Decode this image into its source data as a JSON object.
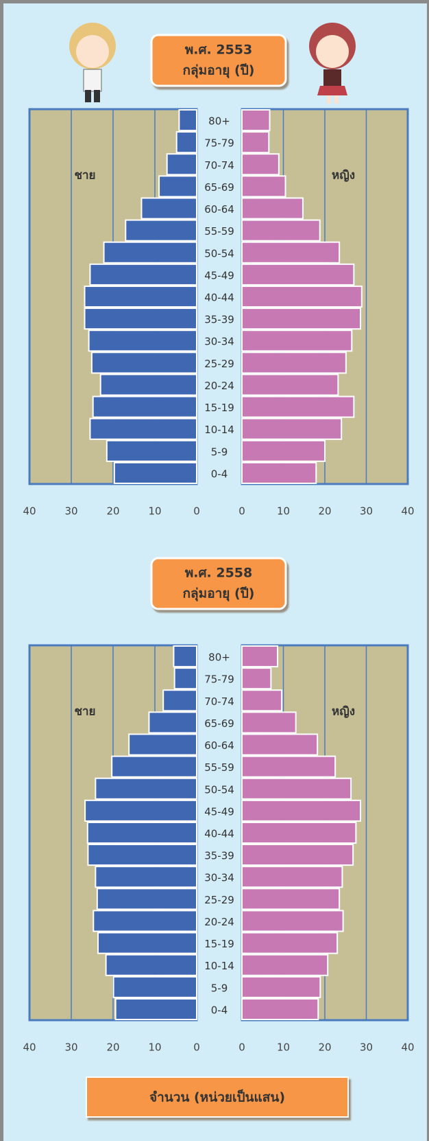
{
  "chart_data": [
    {
      "type": "pyramid",
      "title": "พ.ศ. 2553",
      "subtitle": "กลุ่มอายุ (ปี)",
      "categories": [
        "80+",
        "75-79",
        "70-74",
        "65-69",
        "60-64",
        "55-59",
        "50-54",
        "45-49",
        "40-44",
        "35-39",
        "30-34",
        "25-29",
        "20-24",
        "15-19",
        "10-14",
        "5-9",
        "0-4"
      ],
      "series": [
        {
          "name": "ชาย",
          "color": "#4067b1",
          "values": [
            4.2,
            4.8,
            7.1,
            9.0,
            13.2,
            17.0,
            22.2,
            25.5,
            26.8,
            26.8,
            25.8,
            25.1,
            23.0,
            24.8,
            25.5,
            21.5,
            19.7
          ]
        },
        {
          "name": "หญิง",
          "color": "#c779b4",
          "values": [
            6.7,
            6.5,
            8.9,
            10.5,
            14.7,
            18.8,
            23.5,
            27.0,
            28.9,
            28.6,
            26.5,
            25.1,
            23.2,
            27.0,
            24.0,
            20.0,
            17.9
          ]
        }
      ],
      "xlim": [
        0,
        40
      ],
      "xticks": [
        0,
        10,
        20,
        30,
        40
      ],
      "grid": true
    },
    {
      "type": "pyramid",
      "title": "พ.ศ. 2558",
      "subtitle": "กลุ่มอายุ (ปี)",
      "categories": [
        "80+",
        "75-79",
        "70-74",
        "65-69",
        "60-64",
        "55-59",
        "50-54",
        "45-49",
        "40-44",
        "35-39",
        "30-34",
        "25-29",
        "20-24",
        "15-19",
        "10-14",
        "5-9",
        "0-4"
      ],
      "series": [
        {
          "name": "ชาย",
          "color": "#4067b1",
          "values": [
            5.5,
            5.3,
            8.0,
            11.4,
            16.2,
            20.3,
            24.2,
            26.7,
            26.1,
            26.0,
            24.2,
            23.8,
            24.7,
            23.6,
            21.7,
            19.9,
            19.4
          ]
        },
        {
          "name": "หญิง",
          "color": "#c779b4",
          "values": [
            8.6,
            7.0,
            9.6,
            13.0,
            18.2,
            22.5,
            26.3,
            28.6,
            27.5,
            26.8,
            24.2,
            23.5,
            24.4,
            23.0,
            20.7,
            18.9,
            18.4
          ]
        }
      ],
      "xlim": [
        0,
        40
      ],
      "xticks": [
        0,
        10,
        20,
        30,
        40
      ],
      "grid": true
    }
  ],
  "caption": "จำนวน (หน่วยเป็นแสน)"
}
